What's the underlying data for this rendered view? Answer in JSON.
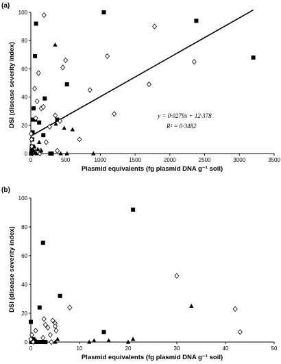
{
  "chart_data": [
    {
      "type": "scatter",
      "panel_label": "(a)",
      "xlabel": "Plasmid equivalents (fg plasmid DNA g⁻¹ soil)",
      "ylabel": "DSI (disease severity index)",
      "xlim": [
        0,
        3500
      ],
      "ylim": [
        0,
        100
      ],
      "xticks": [
        0,
        500,
        1000,
        1500,
        2000,
        2500,
        3000,
        3500
      ],
      "yticks": [
        0,
        20,
        40,
        60,
        80,
        100
      ],
      "equation": "y = 0·0279x + 12·378",
      "r_squared": "R² = 0·3482",
      "trendline": {
        "slope": 0.0279,
        "intercept": 12.378,
        "x_end": 3200
      },
      "series": [
        {
          "marker": "square",
          "points": [
            [
              5,
              0
            ],
            [
              10,
              2
            ],
            [
              15,
              5
            ],
            [
              20,
              10
            ],
            [
              25,
              15
            ],
            [
              30,
              24
            ],
            [
              40,
              32
            ],
            [
              60,
              24
            ],
            [
              60,
              69
            ],
            [
              75,
              92
            ],
            [
              120,
              22
            ],
            [
              180,
              13
            ],
            [
              200,
              39
            ],
            [
              280,
              0
            ],
            [
              300,
              0
            ],
            [
              380,
              24
            ],
            [
              520,
              49
            ],
            [
              1050,
              100
            ],
            [
              2380,
              94
            ],
            [
              3200,
              68
            ]
          ]
        },
        {
          "marker": "diamond",
          "points": [
            [
              5,
              14
            ],
            [
              10,
              10
            ],
            [
              15,
              5
            ],
            [
              25,
              0
            ],
            [
              30,
              1
            ],
            [
              40,
              3
            ],
            [
              55,
              46
            ],
            [
              70,
              25
            ],
            [
              90,
              37
            ],
            [
              110,
              57
            ],
            [
              130,
              0
            ],
            [
              140,
              2
            ],
            [
              150,
              32
            ],
            [
              180,
              33
            ],
            [
              190,
              98
            ],
            [
              220,
              8
            ],
            [
              270,
              19
            ],
            [
              350,
              27
            ],
            [
              380,
              2
            ],
            [
              420,
              23
            ],
            [
              460,
              61
            ],
            [
              500,
              66
            ],
            [
              700,
              10
            ],
            [
              850,
              45
            ],
            [
              1100,
              69
            ],
            [
              1200,
              28
            ],
            [
              1700,
              49
            ],
            [
              1780,
              90
            ],
            [
              2350,
              65
            ]
          ]
        },
        {
          "marker": "triangle",
          "points": [
            [
              5,
              0
            ],
            [
              10,
              1
            ],
            [
              20,
              2
            ],
            [
              30,
              3
            ],
            [
              50,
              5
            ],
            [
              60,
              1
            ],
            [
              80,
              0
            ],
            [
              100,
              3
            ],
            [
              120,
              8
            ],
            [
              150,
              2
            ],
            [
              350,
              77
            ],
            [
              360,
              21
            ],
            [
              430,
              0
            ],
            [
              480,
              18
            ],
            [
              520,
              0
            ],
            [
              600,
              17
            ],
            [
              900,
              0
            ]
          ]
        }
      ]
    },
    {
      "type": "scatter",
      "panel_label": "(b)",
      "xlabel": "Plasmid equivalents (fg plasmid DNA g⁻¹ soil)",
      "ylabel": "DSI (disease severity index)",
      "xlim": [
        0,
        50
      ],
      "ylim": [
        0,
        100
      ],
      "xticks": [
        0,
        10,
        20,
        30,
        40,
        50
      ],
      "yticks": [
        0,
        20,
        40,
        60,
        80,
        100
      ],
      "series": [
        {
          "marker": "square",
          "points": [
            [
              0,
              14
            ],
            [
              0.1,
              0
            ],
            [
              0.3,
              0
            ],
            [
              0.5,
              2
            ],
            [
              0.8,
              1
            ],
            [
              1,
              0
            ],
            [
              1.5,
              0
            ],
            [
              1.8,
              24
            ],
            [
              2,
              0
            ],
            [
              2.5,
              0
            ],
            [
              3,
              0
            ],
            [
              2.5,
              69
            ],
            [
              6,
              32
            ],
            [
              15,
              7
            ],
            [
              21,
              92
            ]
          ]
        },
        {
          "marker": "diamond",
          "points": [
            [
              0,
              2
            ],
            [
              0.2,
              5
            ],
            [
              0.5,
              0
            ],
            [
              1,
              8
            ],
            [
              2.5,
              3
            ],
            [
              2.7,
              16
            ],
            [
              3,
              12
            ],
            [
              3.5,
              10
            ],
            [
              4,
              5
            ],
            [
              4.2,
              0
            ],
            [
              4.5,
              15
            ],
            [
              5,
              13
            ],
            [
              5,
              11
            ],
            [
              5.2,
              8
            ],
            [
              8,
              24
            ],
            [
              30,
              46
            ],
            [
              42,
              23
            ],
            [
              43,
              7
            ]
          ]
        },
        {
          "marker": "triangle",
          "points": [
            [
              1,
              0
            ],
            [
              3,
              0
            ],
            [
              5,
              0
            ],
            [
              5.5,
              2
            ],
            [
              12,
              0
            ],
            [
              13,
              1
            ],
            [
              16,
              1
            ],
            [
              20,
              0
            ],
            [
              21,
              2
            ],
            [
              33,
              25
            ]
          ]
        }
      ]
    }
  ]
}
